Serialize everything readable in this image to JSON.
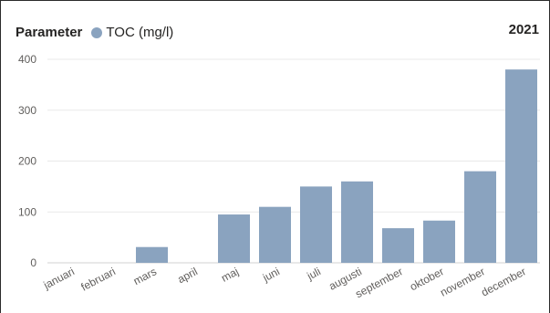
{
  "legend": {
    "title": "Parameter",
    "series_label": "TOC (mg/l)",
    "color": "#8aa3bf"
  },
  "year_label": "2021",
  "chart_data": {
    "type": "bar",
    "categories": [
      "januari",
      "februari",
      "mars",
      "april",
      "maj",
      "juni",
      "juli",
      "augusti",
      "september",
      "oktober",
      "november",
      "december"
    ],
    "series": [
      {
        "name": "TOC (mg/l)",
        "values": [
          0,
          0,
          31,
          0,
          95,
          110,
          150,
          160,
          68,
          83,
          180,
          380
        ]
      }
    ],
    "ylim": [
      0,
      400
    ],
    "yticks": [
      0,
      100,
      200,
      300,
      400
    ],
    "grid": true,
    "legend_position": "top-left",
    "xlabel": "",
    "ylabel": "",
    "title": ""
  }
}
